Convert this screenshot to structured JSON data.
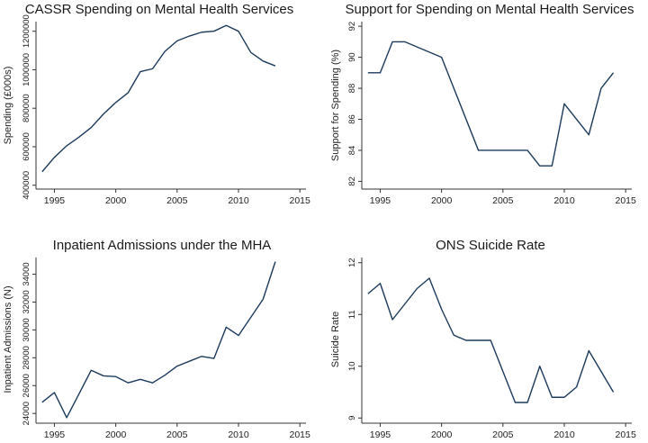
{
  "chart_data": [
    {
      "type": "line",
      "title": "CASSR Spending on Mental Health Services",
      "xlabel": "",
      "ylabel": "Spending (£000s)",
      "xlim": [
        1993.5,
        2015.5
      ],
      "ylim": [
        380000,
        1250000
      ],
      "xticks": [
        1995,
        2000,
        2005,
        2010,
        2015
      ],
      "yticks": [
        400000,
        600000,
        800000,
        1000000,
        1200000
      ],
      "x": [
        1994,
        1995,
        1996,
        1997,
        1998,
        1999,
        2000,
        2001,
        2002,
        2003,
        2004,
        2005,
        2006,
        2007,
        2008,
        2009,
        2010,
        2011,
        2012,
        2013
      ],
      "y": [
        470000,
        545000,
        605000,
        650000,
        700000,
        770000,
        830000,
        880000,
        990000,
        1005000,
        1095000,
        1150000,
        1175000,
        1195000,
        1200000,
        1230000,
        1200000,
        1090000,
        1045000,
        1020000
      ]
    },
    {
      "type": "line",
      "title": "Support for Spending on Mental Health Services",
      "xlabel": "",
      "ylabel": "Support for Spending (%)",
      "xlim": [
        1993.5,
        2015.5
      ],
      "ylim": [
        81.5,
        92.3
      ],
      "xticks": [
        1995,
        2000,
        2005,
        2010,
        2015
      ],
      "yticks": [
        82,
        84,
        86,
        88,
        90,
        92
      ],
      "x": [
        1994,
        1995,
        1996,
        1997,
        2000,
        2003,
        2007,
        2008,
        2009,
        2010,
        2012,
        2013,
        2014
      ],
      "y": [
        89,
        89,
        91,
        91,
        90,
        84,
        84,
        83,
        83,
        87,
        85,
        88,
        89
      ]
    },
    {
      "type": "line",
      "title": "Inpatient Admissions under the MHA",
      "xlabel": "",
      "ylabel": "Inpatient Admissions (N)",
      "xlim": [
        1993.5,
        2015.5
      ],
      "ylim": [
        23300,
        35200
      ],
      "xticks": [
        1995,
        2000,
        2005,
        2010,
        2015
      ],
      "yticks": [
        24000,
        26000,
        28000,
        30000,
        32000,
        34000
      ],
      "x": [
        1994,
        1995,
        1996,
        1997,
        1998,
        1999,
        2000,
        2001,
        2002,
        2003,
        2004,
        2005,
        2006,
        2007,
        2008,
        2009,
        2010,
        2011,
        2012,
        2013
      ],
      "y": [
        24800,
        25500,
        23700,
        25400,
        27100,
        26700,
        26650,
        26200,
        26450,
        26200,
        26750,
        27400,
        27750,
        28100,
        27950,
        30200,
        29600,
        30900,
        32200,
        34900
      ]
    },
    {
      "type": "line",
      "title": "ONS Suicide Rate",
      "xlabel": "",
      "ylabel": "Suicide Rate",
      "xlim": [
        1993.5,
        2015.5
      ],
      "ylim": [
        8.9,
        12.1
      ],
      "xticks": [
        1995,
        2000,
        2005,
        2010,
        2015
      ],
      "yticks": [
        9,
        10,
        11,
        12
      ],
      "x": [
        1994,
        1995,
        1996,
        1998,
        1999,
        2000,
        2001,
        2002,
        2004,
        2006,
        2007,
        2008,
        2009,
        2010,
        2011,
        2012,
        2014
      ],
      "y": [
        11.4,
        11.6,
        10.9,
        11.5,
        11.7,
        11.1,
        10.6,
        10.5,
        10.5,
        9.3,
        9.3,
        10.0,
        9.4,
        9.4,
        9.6,
        10.3,
        9.5
      ]
    }
  ]
}
